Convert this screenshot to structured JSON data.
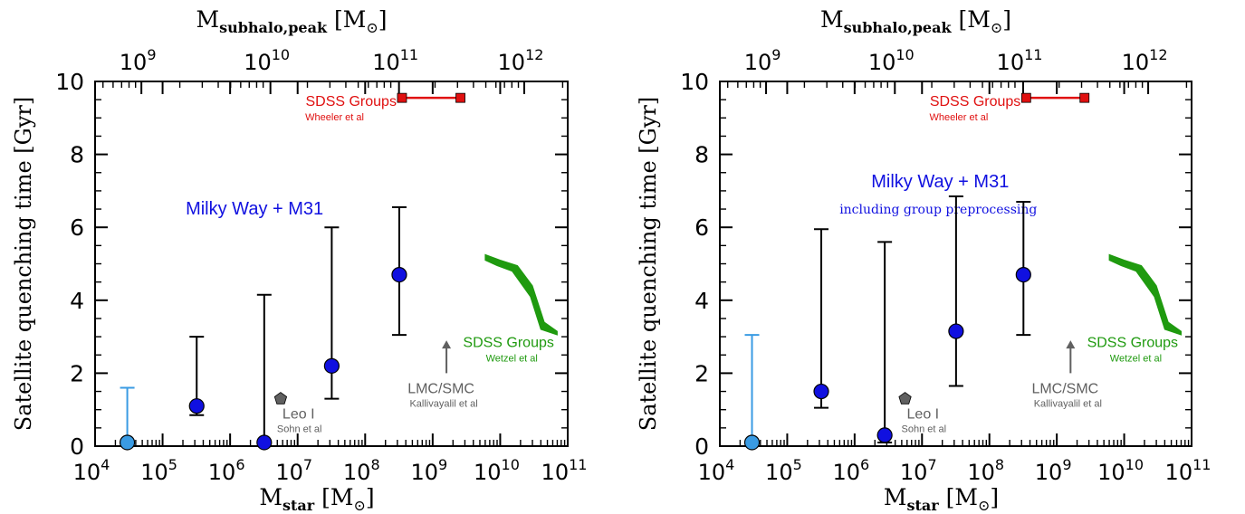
{
  "chart_data": [
    {
      "type": "scatter",
      "xlabel_main": "M",
      "xlabel_sub": "star",
      "xlabel_unit": "[M",
      "x2label_main": "M",
      "x2label_sub": "subhalo,peak",
      "x2label_unit": "[M",
      "ylabel": "Satellite quenching time [Gyr]",
      "xscale": "log",
      "xlim": [
        10000,
        100000000000
      ],
      "ylim": [
        0,
        10
      ],
      "x_ticks": [
        {
          "base": "10",
          "exp": "4"
        },
        {
          "base": "10",
          "exp": "5"
        },
        {
          "base": "10",
          "exp": "6"
        },
        {
          "base": "10",
          "exp": "7"
        },
        {
          "base": "10",
          "exp": "8"
        },
        {
          "base": "10",
          "exp": "9"
        },
        {
          "base": "10",
          "exp": "10"
        },
        {
          "base": "10",
          "exp": "11"
        }
      ],
      "x2_ticks": [
        {
          "base": "10",
          "exp": "9"
        },
        {
          "base": "10",
          "exp": "10"
        },
        {
          "base": "10",
          "exp": "11"
        },
        {
          "base": "10",
          "exp": "12"
        }
      ],
      "y_ticks": [
        "0",
        "2",
        "4",
        "6",
        "8",
        "10"
      ],
      "mw_label": "Milky Way + M31",
      "mw_sublabel": "",
      "mw_points": [
        {
          "x": 30000,
          "y": 0.1,
          "y_lo": 0.1,
          "y_hi": 1.6,
          "color": "#3a9be3"
        },
        {
          "x": 320000,
          "y": 1.1,
          "y_lo": 0.85,
          "y_hi": 3.0,
          "color": "#1010e0"
        },
        {
          "x": 3200000,
          "y": 0.1,
          "y_lo": 0.1,
          "y_hi": 4.15,
          "color": "#1010e0"
        },
        {
          "x": 32000000,
          "y": 2.2,
          "y_lo": 1.3,
          "y_hi": 6.0,
          "color": "#1010e0"
        },
        {
          "x": 320000000,
          "y": 4.7,
          "y_lo": 3.05,
          "y_hi": 6.55,
          "color": "#1010e0"
        }
      ],
      "sdss_groups_wheeler": {
        "label": "SDSS Groups",
        "sublabel": "Wheeler et al",
        "x_start": 320000000,
        "x_end": 3200000000,
        "y": 9.5,
        "color": "#e01010"
      },
      "sdss_groups_wetzel": {
        "label": "SDSS Groups",
        "sublabel": "Wetzel et al",
        "color": "#1f9a0f",
        "upper": [
          [
            6000000000,
            5.25
          ],
          [
            10000000000,
            5.1
          ],
          [
            18000000000,
            4.95
          ],
          [
            30000000000,
            4.4
          ],
          [
            45000000000,
            3.4
          ],
          [
            70000000000,
            3.15
          ]
        ],
        "lower": [
          [
            70000000000,
            3.05
          ],
          [
            40000000000,
            3.2
          ],
          [
            28000000000,
            4.1
          ],
          [
            15000000000,
            4.8
          ],
          [
            9000000000,
            4.95
          ],
          [
            6000000000,
            5.1
          ]
        ]
      },
      "leo_i": {
        "label": "Leo I",
        "sublabel": "Sohn et al",
        "x": 5600000,
        "y": 1.3,
        "color": "#606060"
      },
      "lmc_smc": {
        "label": "LMC/SMC",
        "sublabel": "Kallivayalil et al",
        "x": 1600000000,
        "y": 2.0,
        "y_arrow": 2.9,
        "color": "#606060"
      }
    },
    {
      "type": "scatter",
      "xlabel_main": "M",
      "xlabel_sub": "star",
      "xlabel_unit": "[M",
      "x2label_main": "M",
      "x2label_sub": "subhalo,peak",
      "x2label_unit": "[M",
      "ylabel": "Satellite quenching time [Gyr]",
      "xscale": "log",
      "xlim": [
        10000,
        100000000000
      ],
      "ylim": [
        0,
        10
      ],
      "x_ticks": [
        {
          "base": "10",
          "exp": "4"
        },
        {
          "base": "10",
          "exp": "5"
        },
        {
          "base": "10",
          "exp": "6"
        },
        {
          "base": "10",
          "exp": "7"
        },
        {
          "base": "10",
          "exp": "8"
        },
        {
          "base": "10",
          "exp": "9"
        },
        {
          "base": "10",
          "exp": "10"
        },
        {
          "base": "10",
          "exp": "11"
        }
      ],
      "x2_ticks": [
        {
          "base": "10",
          "exp": "9"
        },
        {
          "base": "10",
          "exp": "10"
        },
        {
          "base": "10",
          "exp": "11"
        },
        {
          "base": "10",
          "exp": "12"
        }
      ],
      "y_ticks": [
        "0",
        "2",
        "4",
        "6",
        "8",
        "10"
      ],
      "mw_label": "Milky Way + M31",
      "mw_sublabel": "including group preprocessing",
      "mw_points": [
        {
          "x": 30000,
          "y": 0.1,
          "y_lo": 0.1,
          "y_hi": 3.05,
          "color": "#3a9be3"
        },
        {
          "x": 320000,
          "y": 1.5,
          "y_lo": 1.05,
          "y_hi": 5.95,
          "color": "#1010e0"
        },
        {
          "x": 2800000,
          "y": 0.3,
          "y_lo": 0.1,
          "y_hi": 5.6,
          "color": "#1010e0"
        },
        {
          "x": 32000000,
          "y": 3.15,
          "y_lo": 1.65,
          "y_hi": 6.85,
          "color": "#1010e0"
        },
        {
          "x": 320000000,
          "y": 4.7,
          "y_lo": 3.05,
          "y_hi": 6.7,
          "color": "#1010e0"
        }
      ],
      "sdss_groups_wheeler": {
        "label": "SDSS Groups",
        "sublabel": "Wheeler et al",
        "x_start": 320000000,
        "x_end": 3200000000,
        "y": 9.5,
        "color": "#e01010"
      },
      "sdss_groups_wetzel": {
        "label": "SDSS Groups",
        "sublabel": "Wetzel et al",
        "color": "#1f9a0f",
        "upper": [
          [
            6000000000,
            5.25
          ],
          [
            10000000000,
            5.1
          ],
          [
            18000000000,
            4.95
          ],
          [
            30000000000,
            4.4
          ],
          [
            45000000000,
            3.4
          ],
          [
            70000000000,
            3.15
          ]
        ],
        "lower": [
          [
            70000000000,
            3.05
          ],
          [
            40000000000,
            3.2
          ],
          [
            28000000000,
            4.1
          ],
          [
            15000000000,
            4.8
          ],
          [
            9000000000,
            4.95
          ],
          [
            6000000000,
            5.1
          ]
        ]
      },
      "leo_i": {
        "label": "Leo I",
        "sublabel": "Sohn et al",
        "x": 5600000,
        "y": 1.3,
        "color": "#606060"
      },
      "lmc_smc": {
        "label": "LMC/SMC",
        "sublabel": "Kallivayalil et al",
        "x": 1600000000,
        "y": 2.0,
        "y_arrow": 2.9,
        "color": "#606060"
      }
    }
  ]
}
